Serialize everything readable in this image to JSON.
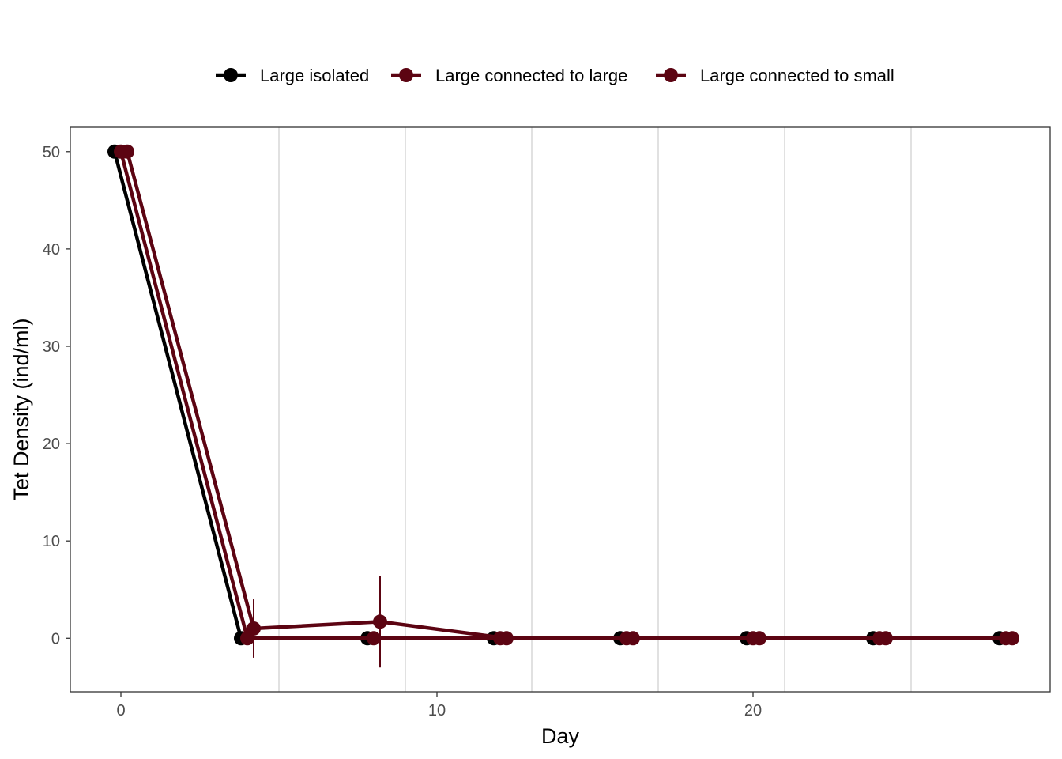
{
  "chart_data": {
    "type": "line",
    "title": "",
    "xlabel": "Day",
    "ylabel": "Tet Density (ind/ml)",
    "xlim": [
      -1.6,
      29.4
    ],
    "ylim": [
      -5.5,
      52.5
    ],
    "x_ticks": [
      0,
      10,
      20
    ],
    "y_ticks": [
      0,
      10,
      20,
      30,
      40,
      50
    ],
    "x_tick_labels": [
      "0",
      "10",
      "20"
    ],
    "y_tick_labels": [
      "0",
      "10",
      "20",
      "30",
      "40",
      "50"
    ],
    "vertical_gridlines": [
      5,
      9,
      13,
      17,
      21,
      25
    ],
    "grid": "vertical-minor",
    "legend_position": "top",
    "series": [
      {
        "name": "Large isolated",
        "color": "#000000",
        "x": [
          0,
          4,
          8,
          12,
          16,
          20,
          24,
          28
        ],
        "y": [
          50,
          0,
          0,
          0,
          0,
          0,
          0,
          0
        ],
        "err": [
          0,
          0,
          0,
          0,
          0,
          0,
          0,
          0
        ]
      },
      {
        "name": "Large connected to large",
        "color": "#5c0412",
        "x": [
          0,
          4,
          8,
          12,
          16,
          20,
          24,
          28
        ],
        "y": [
          50,
          0,
          0,
          0,
          0,
          0,
          0,
          0
        ],
        "err": [
          0,
          0,
          0,
          0,
          0,
          0,
          0,
          0
        ]
      },
      {
        "name": "Large connected to small",
        "color": "#5c0412",
        "x": [
          0,
          4,
          8,
          12,
          16,
          20,
          24,
          28
        ],
        "y": [
          50,
          1,
          1.7,
          0,
          0,
          0,
          0,
          0
        ],
        "err": [
          0,
          3,
          4.7,
          0,
          0,
          0,
          0,
          0
        ]
      }
    ]
  }
}
